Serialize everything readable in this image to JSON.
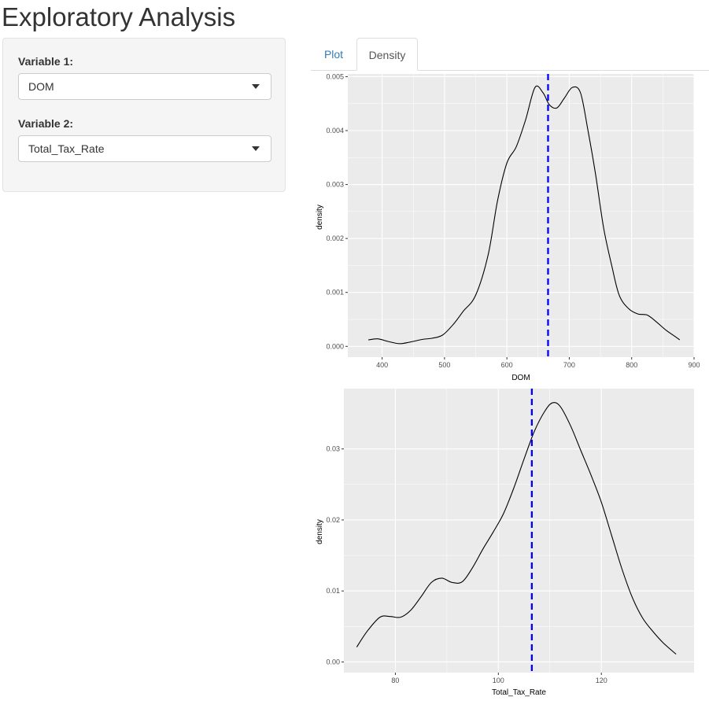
{
  "page": {
    "title": "Exploratory Analysis"
  },
  "sidebar": {
    "variable1": {
      "label": "Variable 1:",
      "value": "DOM"
    },
    "variable2": {
      "label": "Variable 2:",
      "value": "Total_Tax_Rate"
    }
  },
  "tabs": [
    {
      "label": "Plot",
      "active": false
    },
    {
      "label": "Density",
      "active": true
    }
  ],
  "colors": {
    "panel_background": "#ebebeb",
    "gridline": "#ffffff",
    "density_line": "#000000",
    "mean_line": "#0000ff",
    "tab_link": "#337ab7"
  },
  "chart_data": [
    {
      "type": "line",
      "title": "",
      "xlabel": "DOM",
      "ylabel": "density",
      "xlim": [
        345,
        900
      ],
      "ylim": [
        -0.0002,
        0.00505
      ],
      "x_ticks": [
        400,
        500,
        600,
        700,
        800,
        900
      ],
      "x_tick_labels": [
        "400",
        "500",
        "600",
        "700",
        "800",
        "900"
      ],
      "y_ticks": [
        0,
        0.001,
        0.002,
        0.003,
        0.004,
        0.005
      ],
      "y_tick_labels": [
        "0.000",
        "0.001",
        "0.002",
        "0.003",
        "0.004",
        "0.005"
      ],
      "grid": true,
      "vline": 666,
      "x": [
        378,
        393,
        410,
        428,
        445,
        465,
        480,
        497,
        515,
        530,
        550,
        570,
        585,
        600,
        615,
        630,
        645,
        658,
        668,
        680,
        692,
        705,
        718,
        730,
        742,
        755,
        768,
        780,
        795,
        810,
        825,
        840,
        855,
        870,
        877
      ],
      "y": [
        0.00012,
        0.00014,
        9e-05,
        5e-05,
        8e-05,
        0.00013,
        0.00015,
        0.00021,
        0.00042,
        0.00065,
        0.00095,
        0.0017,
        0.0027,
        0.0034,
        0.0037,
        0.0042,
        0.0048,
        0.0047,
        0.00448,
        0.00442,
        0.0046,
        0.0048,
        0.0047,
        0.004,
        0.0032,
        0.0022,
        0.0015,
        0.00095,
        0.0007,
        0.0006,
        0.00058,
        0.00045,
        0.0003,
        0.00018,
        0.00012
      ]
    },
    {
      "type": "line",
      "title": "",
      "xlabel": "Total_Tax_Rate",
      "ylabel": "density",
      "xlim": [
        70,
        138
      ],
      "ylim": [
        -0.0015,
        0.0385
      ],
      "x_ticks": [
        80,
        100,
        120
      ],
      "x_tick_labels": [
        "80",
        "100",
        "120"
      ],
      "y_ticks": [
        0,
        0.01,
        0.02,
        0.03
      ],
      "y_tick_labels": [
        "0.00",
        "0.01",
        "0.02",
        "0.03"
      ],
      "grid": true,
      "vline": 106.5,
      "x": [
        72.5,
        74.5,
        77,
        79,
        81,
        83,
        85,
        87,
        89,
        91,
        93,
        95,
        97,
        99,
        101,
        103,
        105,
        107,
        109,
        110.5,
        112,
        114,
        116,
        118,
        120,
        122,
        124,
        126,
        128,
        130,
        132,
        134.5
      ],
      "y": [
        0.0021,
        0.0043,
        0.0063,
        0.0064,
        0.0063,
        0.0073,
        0.0092,
        0.0112,
        0.0118,
        0.0112,
        0.0113,
        0.0133,
        0.0159,
        0.0183,
        0.0209,
        0.0245,
        0.0286,
        0.0325,
        0.0353,
        0.0365,
        0.036,
        0.0333,
        0.0298,
        0.0263,
        0.0225,
        0.0178,
        0.0131,
        0.0091,
        0.0062,
        0.0043,
        0.0027,
        0.0011
      ]
    }
  ]
}
